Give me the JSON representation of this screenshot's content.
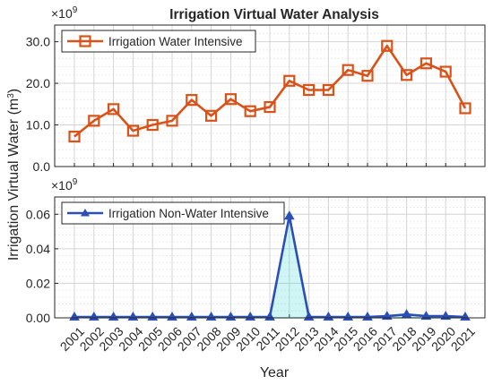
{
  "chart_data": {
    "type": "line",
    "title": "Irrigation Virtual Water Analysis",
    "xlabel": "Year",
    "ylabel_prefix": "Irrigation Virtual Water (m",
    "ylabel_sup": "3",
    "ylabel_suffix": ")",
    "categories": [
      "2001",
      "2002",
      "2003",
      "2004",
      "2005",
      "2006",
      "2007",
      "2008",
      "2009",
      "2010",
      "2011",
      "2012",
      "2013",
      "2014",
      "2015",
      "2016",
      "2017",
      "2018",
      "2019",
      "2020",
      "2021"
    ],
    "panels": [
      {
        "name": "top",
        "exponent_base": "×10",
        "exponent_power": "9",
        "ylim": [
          0,
          34
        ],
        "yticks": [
          0,
          10,
          20,
          30
        ],
        "ytick_labels": [
          "0.0",
          "10.0",
          "20.0",
          "30.0"
        ],
        "grid": true,
        "legend_position": "top-left",
        "series": [
          {
            "name": "Irrigation Water Intensive",
            "color": "#d95319",
            "marker": "square",
            "values": [
              7.2,
              11.0,
              13.8,
              8.6,
              10.0,
              11.0,
              16.0,
              12.2,
              16.2,
              13.3,
              14.3,
              20.6,
              18.4,
              18.4,
              23.2,
              21.8,
              29.0,
              22.0,
              24.8,
              22.8,
              14.0
            ]
          }
        ]
      },
      {
        "name": "bottom",
        "exponent_base": "×10",
        "exponent_power": "9",
        "ylim": [
          0,
          0.07
        ],
        "yticks": [
          0,
          0.02,
          0.04,
          0.06
        ],
        "ytick_labels": [
          "0.00",
          "0.02",
          "0.04",
          "0.06"
        ],
        "grid": true,
        "legend_position": "top-left",
        "series": [
          {
            "name": "Irrigation Non-Water Intensive",
            "color": "#2b4fb8",
            "fill_color": "#3fd8d8",
            "marker": "triangle",
            "values": [
              0.0005,
              0.0005,
              0.0005,
              0.0005,
              0.0005,
              0.0005,
              0.0005,
              0.0005,
              0.0005,
              0.0005,
              0.0005,
              0.059,
              0.0005,
              0.0005,
              0.0005,
              0.0005,
              0.001,
              0.002,
              0.001,
              0.001,
              0.0005
            ]
          }
        ]
      }
    ]
  }
}
